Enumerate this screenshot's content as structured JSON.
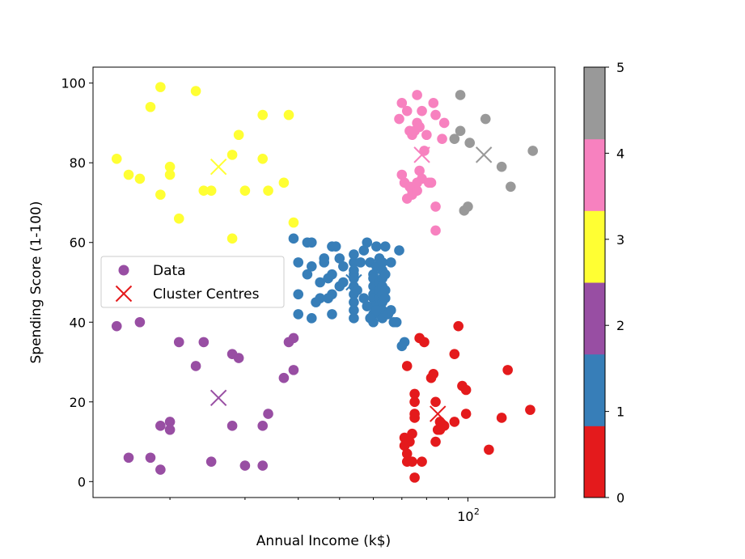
{
  "chart_data": {
    "type": "scatter",
    "xlabel": "Annual Income (k$)",
    "ylabel": "Spending Score (1-100)",
    "x_scale": "log",
    "xlim": [
      13.2,
      160
    ],
    "ylim": [
      -4,
      104
    ],
    "x_ticks": [
      {
        "value": 100,
        "label": "10",
        "exp": "2"
      }
    ],
    "x_minor_ticks": [
      20,
      30,
      40,
      50,
      60,
      70,
      80,
      90
    ],
    "y_ticks": [
      0,
      20,
      40,
      60,
      80,
      100
    ],
    "legend": {
      "placement": "center-left",
      "entries": [
        {
          "label": "Data",
          "marker": "dot",
          "color": "#984ea3"
        },
        {
          "label": "Cluster Centres",
          "marker": "x",
          "color": "#e41a1c"
        }
      ]
    },
    "colorbar": {
      "ticks": [
        "0",
        "1",
        "2",
        "3",
        "4",
        "5"
      ],
      "colors": [
        "#e41a1c",
        "#377eb8",
        "#984ea3",
        "#ffff33",
        "#f781bf",
        "#999999"
      ]
    },
    "clusters": [
      {
        "cluster": 0,
        "color": "#e41a1c",
        "centre": [
          85,
          17
        ],
        "points": [
          [
            77,
            36
          ],
          [
            95,
            39
          ],
          [
            93,
            32
          ],
          [
            72,
            29
          ],
          [
            82,
            26
          ],
          [
            83,
            27
          ],
          [
            97,
            24
          ],
          [
            99,
            23
          ],
          [
            124,
            28
          ],
          [
            99,
            17
          ],
          [
            75,
            22
          ],
          [
            75,
            20
          ],
          [
            84,
            20
          ],
          [
            86,
            15
          ],
          [
            85,
            13
          ],
          [
            75,
            17
          ],
          [
            75,
            16
          ],
          [
            74,
            12
          ],
          [
            71,
            11
          ],
          [
            73,
            10
          ],
          [
            71,
            9
          ],
          [
            72,
            7
          ],
          [
            72,
            5
          ],
          [
            74,
            5
          ],
          [
            78,
            5
          ],
          [
            75,
            1
          ],
          [
            84,
            10
          ],
          [
            88,
            14
          ],
          [
            93,
            15
          ],
          [
            112,
            8
          ],
          [
            120,
            16
          ],
          [
            140,
            18
          ],
          [
            86,
            13
          ],
          [
            79,
            35
          ]
        ]
      },
      {
        "cluster": 1,
        "color": "#377eb8",
        "centre": [
          54,
          50
        ],
        "points": [
          [
            39,
            61
          ],
          [
            42,
            60
          ],
          [
            43,
            60
          ],
          [
            46,
            56
          ],
          [
            48,
            59
          ],
          [
            49,
            59
          ],
          [
            50,
            56
          ],
          [
            51,
            54
          ],
          [
            54,
            57
          ],
          [
            57,
            58
          ],
          [
            58,
            60
          ],
          [
            61,
            59
          ],
          [
            64,
            59
          ],
          [
            69,
            58
          ],
          [
            68,
            40
          ],
          [
            70,
            34
          ],
          [
            71,
            35
          ],
          [
            40,
            55
          ],
          [
            42,
            52
          ],
          [
            43,
            54
          ],
          [
            45,
            50
          ],
          [
            46,
            55
          ],
          [
            47,
            51
          ],
          [
            48,
            52
          ],
          [
            48,
            47
          ],
          [
            50,
            49
          ],
          [
            51,
            50
          ],
          [
            54,
            55
          ],
          [
            54,
            53
          ],
          [
            54,
            52
          ],
          [
            54,
            51
          ],
          [
            54,
            49
          ],
          [
            54,
            47
          ],
          [
            54,
            45
          ],
          [
            54,
            43
          ],
          [
            54,
            41
          ],
          [
            56,
            55
          ],
          [
            59,
            55
          ],
          [
            60,
            52
          ],
          [
            60,
            51
          ],
          [
            60,
            49
          ],
          [
            60,
            47
          ],
          [
            60,
            46
          ],
          [
            60,
            44
          ],
          [
            60,
            42
          ],
          [
            60,
            40
          ],
          [
            61,
            54
          ],
          [
            62,
            56
          ],
          [
            62,
            42
          ],
          [
            62,
            50
          ],
          [
            62,
            48
          ],
          [
            62,
            46
          ],
          [
            62,
            44
          ],
          [
            63,
            55
          ],
          [
            63,
            53
          ],
          [
            63,
            51
          ],
          [
            63,
            49
          ],
          [
            63,
            47
          ],
          [
            63,
            45
          ],
          [
            63,
            43
          ],
          [
            63,
            41
          ],
          [
            64,
            52
          ],
          [
            64,
            48
          ],
          [
            64,
            46
          ],
          [
            65,
            42
          ],
          [
            66,
            55
          ],
          [
            66,
            43
          ],
          [
            67,
            40
          ],
          [
            40,
            47
          ],
          [
            40,
            42
          ],
          [
            43,
            41
          ],
          [
            44,
            45
          ],
          [
            45,
            46
          ],
          [
            47,
            46
          ],
          [
            48,
            42
          ],
          [
            57,
            46
          ],
          [
            58,
            44
          ],
          [
            59,
            41
          ],
          [
            55,
            48
          ],
          [
            61,
            43
          ]
        ]
      },
      {
        "cluster": 2,
        "color": "#984ea3",
        "centre": [
          26,
          21
        ],
        "points": [
          [
            15,
            39
          ],
          [
            16,
            6
          ],
          [
            17,
            40
          ],
          [
            18,
            6
          ],
          [
            19,
            3
          ],
          [
            19,
            14
          ],
          [
            20,
            13
          ],
          [
            20,
            15
          ],
          [
            21,
            35
          ],
          [
            23,
            29
          ],
          [
            24,
            35
          ],
          [
            25,
            5
          ],
          [
            28,
            14
          ],
          [
            28,
            32
          ],
          [
            29,
            31
          ],
          [
            30,
            4
          ],
          [
            33,
            4
          ],
          [
            33,
            14
          ],
          [
            34,
            17
          ],
          [
            37,
            26
          ],
          [
            38,
            35
          ],
          [
            39,
            28
          ],
          [
            39,
            36
          ]
        ]
      },
      {
        "cluster": 3,
        "color": "#ffff33",
        "centre": [
          26,
          79
        ],
        "points": [
          [
            15,
            81
          ],
          [
            16,
            77
          ],
          [
            17,
            76
          ],
          [
            18,
            94
          ],
          [
            19,
            99
          ],
          [
            19,
            72
          ],
          [
            20,
            79
          ],
          [
            20,
            77
          ],
          [
            21,
            66
          ],
          [
            23,
            98
          ],
          [
            24,
            73
          ],
          [
            25,
            73
          ],
          [
            28,
            82
          ],
          [
            28,
            61
          ],
          [
            29,
            87
          ],
          [
            30,
            73
          ],
          [
            33,
            92
          ],
          [
            33,
            81
          ],
          [
            34,
            73
          ],
          [
            37,
            75
          ],
          [
            38,
            92
          ],
          [
            39,
            65
          ]
        ]
      },
      {
        "cluster": 4,
        "color": "#f781bf",
        "centre": [
          78,
          82
        ],
        "points": [
          [
            69,
            91
          ],
          [
            70,
            95
          ],
          [
            72,
            93
          ],
          [
            73,
            88
          ],
          [
            74,
            87
          ],
          [
            75,
            88
          ],
          [
            76,
            97
          ],
          [
            76,
            90
          ],
          [
            77,
            89
          ],
          [
            78,
            93
          ],
          [
            79,
            83
          ],
          [
            80,
            87
          ],
          [
            83,
            95
          ],
          [
            84,
            92
          ],
          [
            87,
            86
          ],
          [
            88,
            90
          ],
          [
            70,
            77
          ],
          [
            71,
            75
          ],
          [
            73,
            74
          ],
          [
            74,
            73
          ],
          [
            74,
            72
          ],
          [
            76,
            73
          ],
          [
            76,
            75
          ],
          [
            77,
            78
          ],
          [
            78,
            76
          ],
          [
            81,
            75
          ],
          [
            82,
            75
          ],
          [
            84,
            69
          ],
          [
            84,
            63
          ],
          [
            72,
            71
          ]
        ]
      },
      {
        "cluster": 5,
        "color": "#999999",
        "centre": [
          109,
          82
        ],
        "points": [
          [
            96,
            97
          ],
          [
            93,
            86
          ],
          [
            96,
            88
          ],
          [
            101,
            85
          ],
          [
            110,
            91
          ],
          [
            120,
            79
          ],
          [
            126,
            74
          ],
          [
            142,
            83
          ],
          [
            98,
            68
          ],
          [
            100,
            69
          ]
        ]
      }
    ]
  }
}
